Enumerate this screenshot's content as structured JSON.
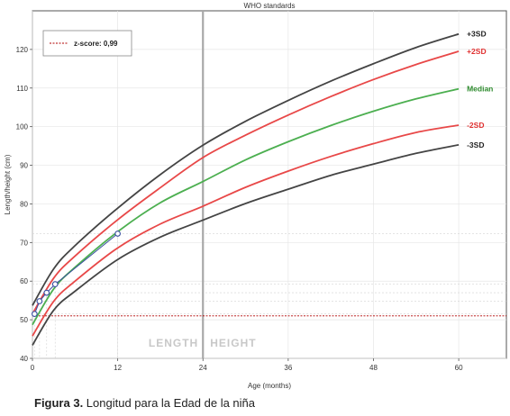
{
  "chart_data": {
    "type": "line",
    "title": "WHO standards",
    "xlabel": "Age (months)",
    "ylabel": "Length/height (cm)",
    "xlim": [
      0,
      66
    ],
    "ylim": [
      40,
      130
    ],
    "xticks": [
      0,
      12,
      24,
      36,
      48,
      60
    ],
    "yticks": [
      40,
      50,
      60,
      70,
      80,
      90,
      100,
      110,
      120
    ],
    "phase_labels": [
      "LENGTH",
      "HEIGHT"
    ],
    "phase_split_x": 24,
    "reference_line": {
      "y": 51,
      "label": "z-score: 0,99",
      "color": "#b00000"
    },
    "legend_position": "top-left",
    "series": [
      {
        "name": "+3SD",
        "color": "#444444",
        "x": [
          0,
          3,
          6,
          12,
          18,
          24,
          30,
          36,
          42,
          48,
          54,
          60
        ],
        "y": [
          53.7,
          63.2,
          69.2,
          78.9,
          87.6,
          95.2,
          101.4,
          106.8,
          111.8,
          116.3,
          120.5,
          124.0
        ]
      },
      {
        "name": "+2SD",
        "color": "#e84848",
        "x": [
          0,
          3,
          6,
          12,
          18,
          24,
          30,
          36,
          42,
          48,
          54,
          60
        ],
        "y": [
          51.5,
          60.8,
          66.5,
          75.9,
          84.2,
          92.0,
          97.8,
          103.0,
          107.8,
          112.2,
          116.1,
          119.5
        ]
      },
      {
        "name": "Median",
        "color": "#4caf50",
        "x": [
          0,
          3,
          6,
          12,
          18,
          24,
          30,
          36,
          42,
          48,
          54,
          60
        ],
        "y": [
          48.7,
          58.0,
          63.6,
          72.8,
          80.3,
          85.8,
          91.4,
          96.1,
          100.3,
          104.0,
          107.2,
          109.8
        ]
      },
      {
        "name": "-2SD",
        "color": "#e84848",
        "x": [
          0,
          3,
          6,
          12,
          18,
          24,
          30,
          36,
          42,
          48,
          54,
          60
        ],
        "y": [
          45.8,
          54.8,
          60.0,
          68.6,
          74.8,
          79.4,
          84.3,
          88.5,
          92.3,
          95.6,
          98.5,
          100.4
        ]
      },
      {
        "name": "-3SD",
        "color": "#444444",
        "x": [
          0,
          3,
          6,
          12,
          18,
          24,
          30,
          36,
          42,
          48,
          54,
          60
        ],
        "y": [
          43.4,
          52.5,
          57.4,
          65.6,
          71.4,
          75.8,
          80.1,
          83.8,
          87.4,
          90.3,
          93.1,
          95.3
        ]
      }
    ],
    "patient": {
      "color": "#3a4fa0",
      "x": [
        0.3,
        1,
        2,
        3.2,
        12
      ],
      "y": [
        51.5,
        54.8,
        57.0,
        59.2,
        72.3
      ]
    }
  },
  "caption": {
    "bold": "Figura 3.",
    "text": " Longitud para la Edad de la niña"
  }
}
